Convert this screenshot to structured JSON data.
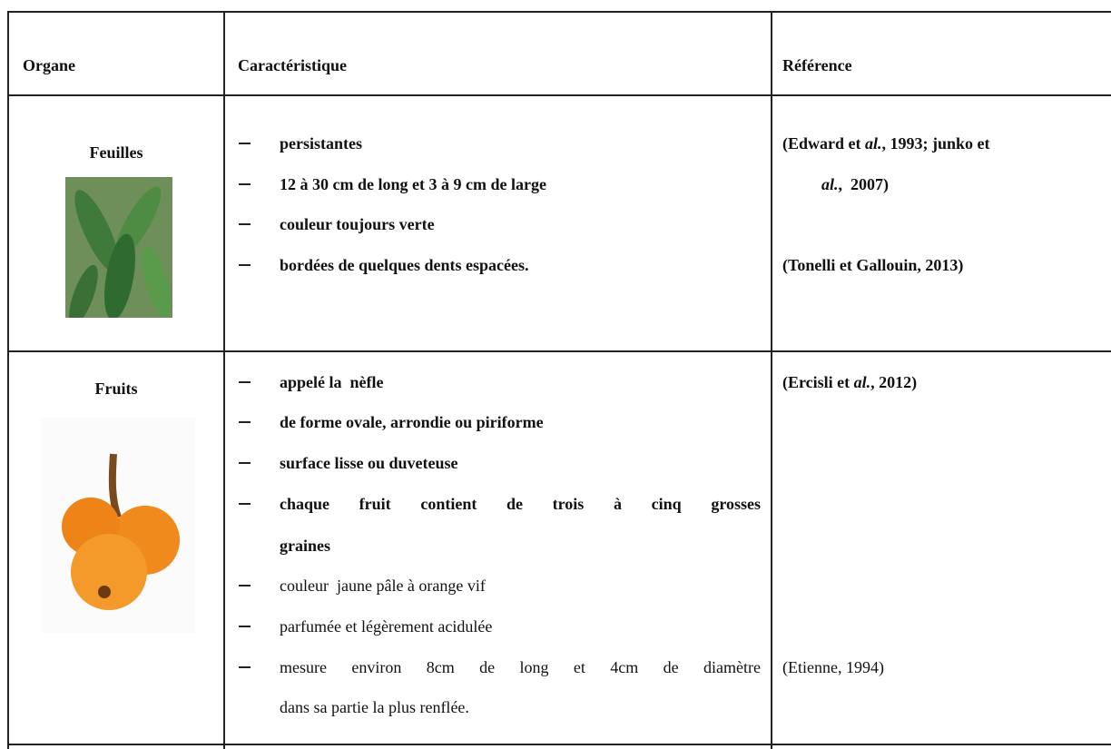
{
  "table": {
    "header": [
      "Organe",
      "Caractéristique",
      "Référence"
    ],
    "rows": [
      {
        "organ": "Feuilles",
        "characteristics": [
          [
            "persistantes"
          ],
          [
            "12 à 30 cm de long et 3 à 9 cm de large"
          ],
          [
            "couleur toujours verte"
          ],
          [
            "bordées de quelques dents espacées."
          ]
        ],
        "references": [
          [
            "(Edward et ",
            "al.",
            ", 1993; junko et"
          ],
          [
            "al.",
            ",  2007)"
          ],
          [
            "(Tonelli et Gallouin, 2013)"
          ]
        ]
      },
      {
        "organ": "Fruits",
        "characteristics": [
          [
            "appelé la  nèfle"
          ],
          [
            "de forme ovale, arrondie ou piriforme"
          ],
          [
            "surface lisse ou duveteuse"
          ],
          [
            "chaque fruit contient de trois à cinq grosses",
            "graines"
          ],
          [
            "couleur  jaune pâle à orange vif"
          ],
          [
            "parfumée et légèrement acidulée"
          ],
          [
            "mesure environ 8cm de long et 4cm de diamètre",
            "dans sa partie la plus renflée."
          ]
        ],
        "references": [
          [
            "(Ercisli et ",
            "al.",
            ", 2012)"
          ],
          [
            "(Etienne, 1994)"
          ]
        ]
      }
    ]
  }
}
